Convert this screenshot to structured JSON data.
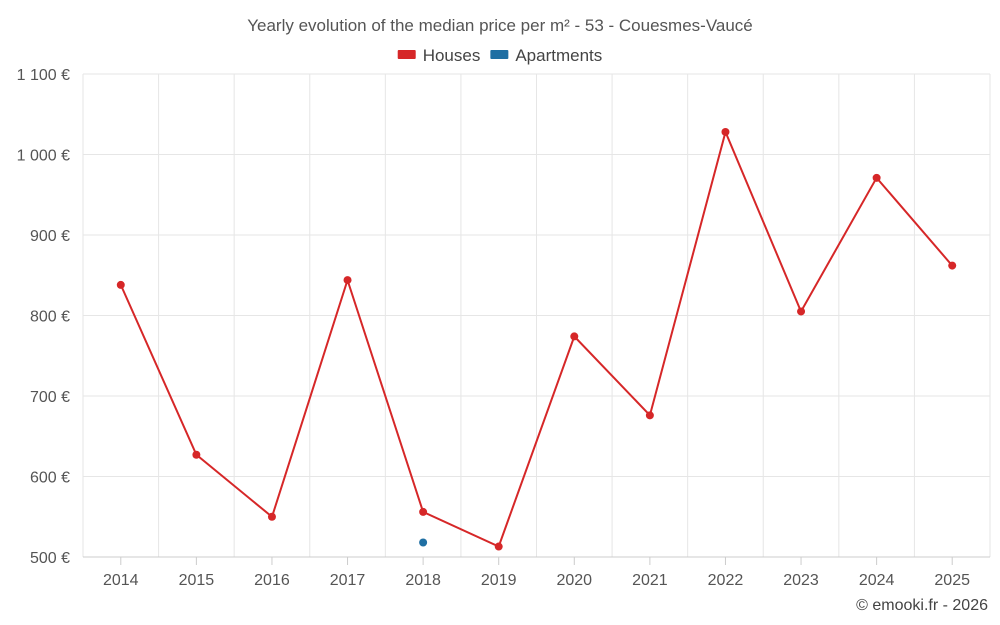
{
  "chart_data": {
    "type": "line",
    "title": "Yearly evolution of the median price per m² - 53 - Couesmes-Vaucé",
    "categories": [
      "2014",
      "2015",
      "2016",
      "2017",
      "2018",
      "2019",
      "2020",
      "2021",
      "2022",
      "2023",
      "2024",
      "2025"
    ],
    "series": [
      {
        "name": "Houses",
        "color": "#d62728",
        "values": [
          838,
          627,
          550,
          844,
          556,
          513,
          774,
          676,
          1028,
          805,
          971,
          862
        ]
      },
      {
        "name": "Apartments",
        "color": "#1f6fa3",
        "values": [
          null,
          null,
          null,
          null,
          518,
          null,
          null,
          null,
          null,
          null,
          null,
          null
        ]
      }
    ],
    "ylim": [
      500,
      1100
    ],
    "yticks": [
      500,
      600,
      700,
      800,
      900,
      1000,
      1100
    ],
    "ytick_labels": [
      "500 €",
      "600 €",
      "700 €",
      "800 €",
      "900 €",
      "1 000 €",
      "1 100 €"
    ],
    "grid": true,
    "legend_position": "top-center"
  },
  "credit": "© emooki.fr - 2026"
}
